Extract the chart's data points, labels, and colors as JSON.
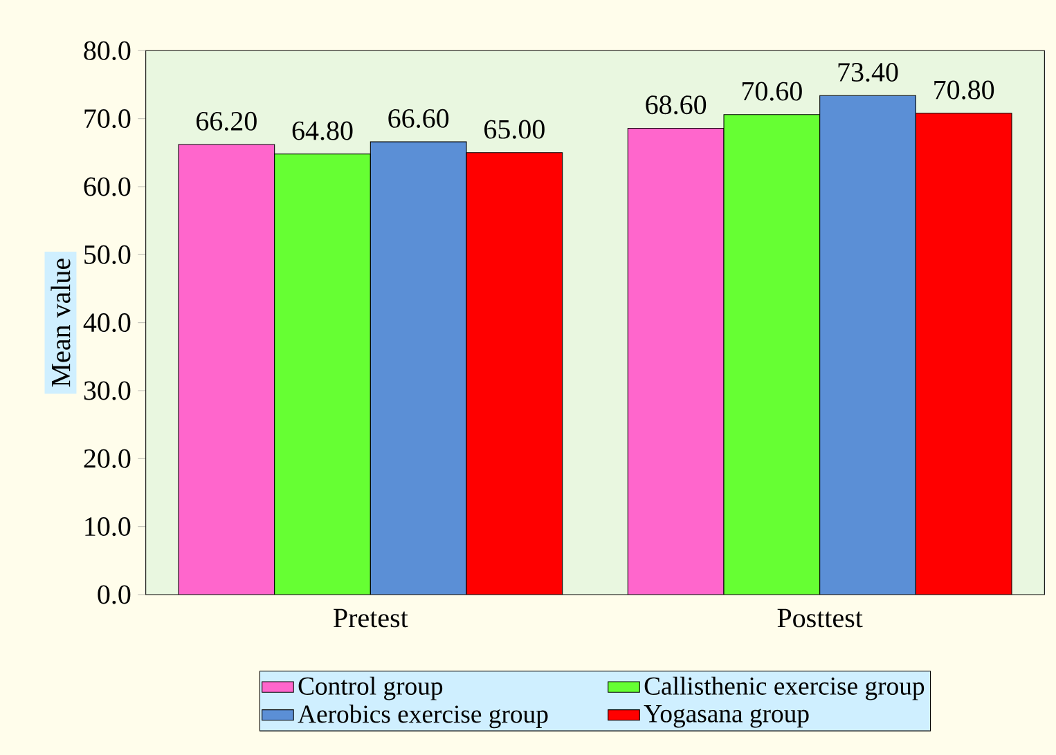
{
  "chart_data": {
    "type": "bar",
    "ylabel": "Mean value",
    "categories": [
      "Pretest",
      "Posttest"
    ],
    "series": [
      {
        "name": "Control group",
        "color": "#ff66cc",
        "values": [
          66.2,
          68.6
        ],
        "value_labels": [
          "66.20",
          "68.60"
        ]
      },
      {
        "name": "Callisthenic exercise group",
        "color": "#66ff33",
        "values": [
          64.8,
          70.6
        ],
        "value_labels": [
          "64.80",
          "70.60"
        ]
      },
      {
        "name": "Aerobics exercise group",
        "color": "#5b8fd6",
        "values": [
          66.6,
          73.4
        ],
        "value_labels": [
          "66.60",
          "73.40"
        ]
      },
      {
        "name": "Yogasana group",
        "color": "#ff0000",
        "values": [
          65.0,
          70.8
        ],
        "value_labels": [
          "65.00",
          "70.80"
        ]
      }
    ],
    "ylim": [
      0,
      80
    ],
    "yticks": [
      {
        "value": 0,
        "label": "0.0"
      },
      {
        "value": 10,
        "label": "10.0"
      },
      {
        "value": 20,
        "label": "20.0"
      },
      {
        "value": 30,
        "label": "30.0"
      },
      {
        "value": 40,
        "label": "40.0"
      },
      {
        "value": 50,
        "label": "50.0"
      },
      {
        "value": 60,
        "label": "60.0"
      },
      {
        "value": 70,
        "label": "70.0"
      },
      {
        "value": 80,
        "label": "80.0"
      }
    ],
    "grid": false,
    "legend": "bottom"
  }
}
